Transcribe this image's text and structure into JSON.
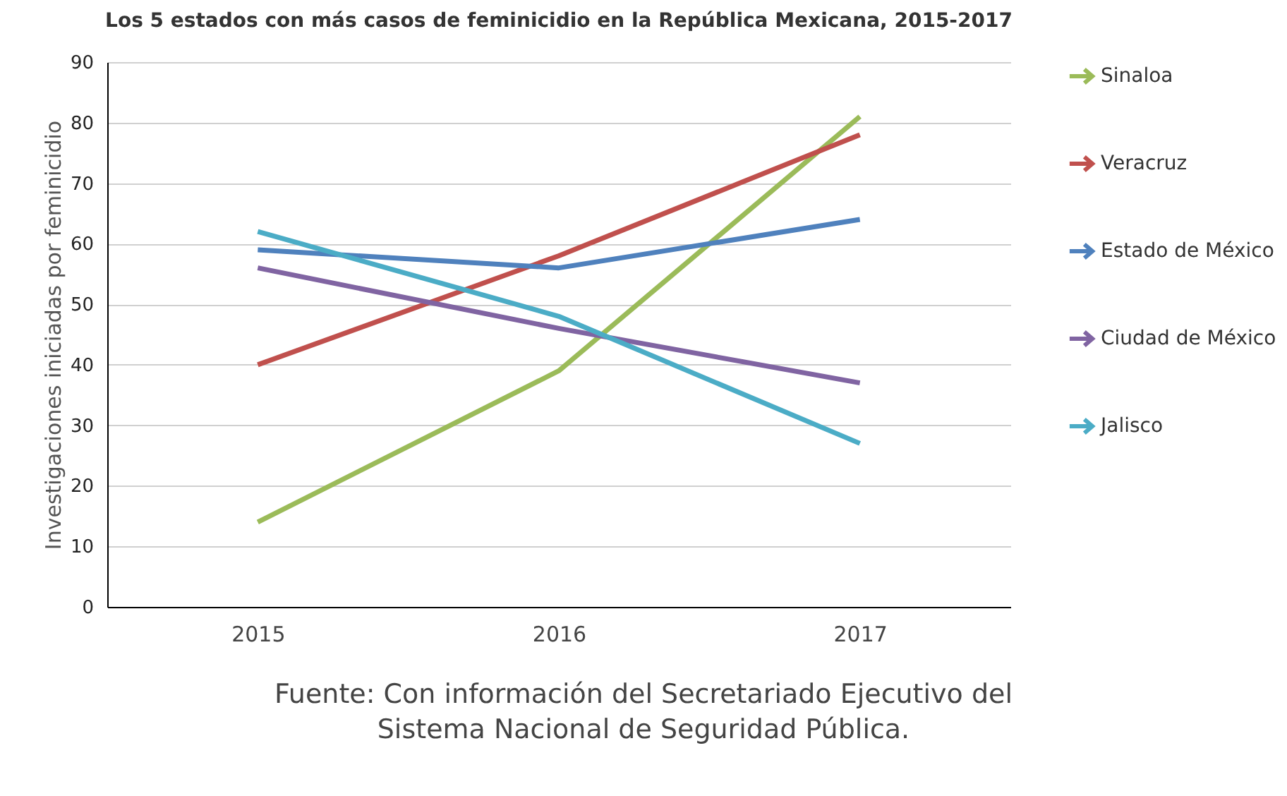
{
  "chart_data": {
    "type": "line",
    "title": "Los 5 estados con más casos de feminicidio en la República Mexicana, 2015-2017",
    "ylabel": "Investigaciones iniciadas por feminicidio",
    "categories": [
      "2015",
      "2016",
      "2017"
    ],
    "series": [
      {
        "name": "Sinaloa",
        "color": "#9bbb59",
        "values": [
          14,
          39,
          81
        ]
      },
      {
        "name": "Veracruz",
        "color": "#c0504d",
        "values": [
          40,
          58,
          78
        ]
      },
      {
        "name": "Estado de México",
        "color": "#4f81bd",
        "values": [
          59,
          56,
          64
        ]
      },
      {
        "name": "Ciudad de México",
        "color": "#8064a2",
        "values": [
          56,
          46,
          37
        ]
      },
      {
        "name": "Jalisco",
        "color": "#4bacc6",
        "values": [
          62,
          48,
          27
        ]
      }
    ],
    "ylim": [
      0,
      90
    ],
    "yticks": [
      0,
      10,
      20,
      30,
      40,
      50,
      60,
      70,
      80,
      90
    ],
    "grid": "y",
    "legend": "right",
    "line_style": "solid",
    "annotations": [
      "Fuente: Con información del Secretariado Ejecutivo del Sistema Nacional de Seguridad Pública."
    ]
  }
}
